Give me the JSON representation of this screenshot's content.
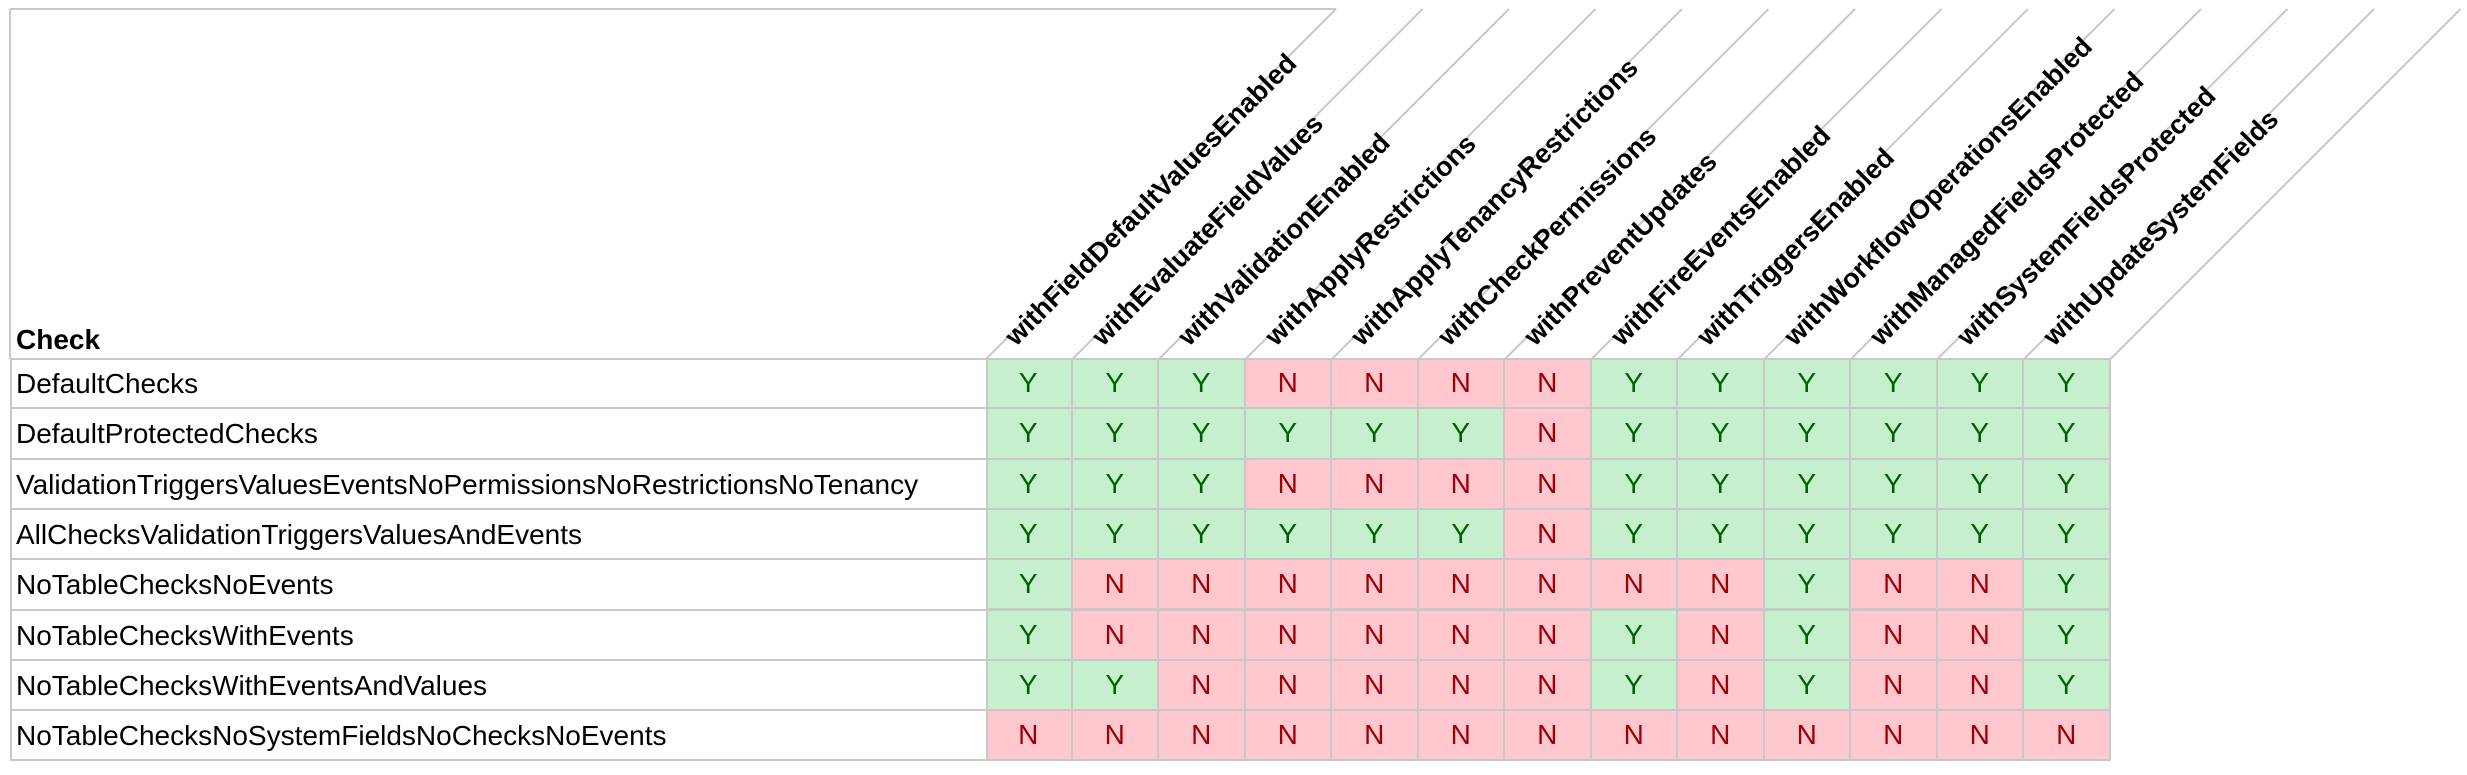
{
  "table": {
    "corner_label": "Check",
    "columns": [
      "withFieldDefaultValuesEnabled",
      "withEvaluateFieldValues",
      "withValidationEnabled",
      "withApplyRestrictions",
      "withApplyTenancyRestrictions",
      "withCheckPermissions",
      "withPreventUpdates",
      "withFireEventsEnabled",
      "withTriggersEnabled",
      "withWorkflowOperationsEnabled",
      "withManagedFieldsProtected",
      "withSystemFieldsProtected",
      "withUpdateSystemFields"
    ],
    "rows": [
      {
        "label": "DefaultChecks",
        "values": [
          "Y",
          "Y",
          "Y",
          "N",
          "N",
          "N",
          "N",
          "Y",
          "Y",
          "Y",
          "Y",
          "Y",
          "Y"
        ]
      },
      {
        "label": "DefaultProtectedChecks",
        "values": [
          "Y",
          "Y",
          "Y",
          "Y",
          "Y",
          "Y",
          "N",
          "Y",
          "Y",
          "Y",
          "Y",
          "Y",
          "Y"
        ]
      },
      {
        "label": "ValidationTriggersValuesEventsNoPermissionsNoRestrictionsNoTenancy",
        "values": [
          "Y",
          "Y",
          "Y",
          "N",
          "N",
          "N",
          "N",
          "Y",
          "Y",
          "Y",
          "Y",
          "Y",
          "Y"
        ]
      },
      {
        "label": "AllChecksValidationTriggersValuesAndEvents",
        "values": [
          "Y",
          "Y",
          "Y",
          "Y",
          "Y",
          "Y",
          "N",
          "Y",
          "Y",
          "Y",
          "Y",
          "Y",
          "Y"
        ]
      },
      {
        "label": "NoTableChecksNoEvents",
        "values": [
          "Y",
          "N",
          "N",
          "N",
          "N",
          "N",
          "N",
          "N",
          "N",
          "Y",
          "N",
          "N",
          "Y"
        ]
      },
      {
        "label": "NoTableChecksWithEvents",
        "values": [
          "Y",
          "N",
          "N",
          "N",
          "N",
          "N",
          "N",
          "Y",
          "N",
          "Y",
          "N",
          "N",
          "Y"
        ]
      },
      {
        "label": "NoTableChecksWithEventsAndValues",
        "values": [
          "Y",
          "Y",
          "N",
          "N",
          "N",
          "N",
          "N",
          "Y",
          "N",
          "Y",
          "N",
          "N",
          "Y"
        ]
      },
      {
        "label": "NoTableChecksNoSystemFieldsNoChecksNoEvents",
        "values": [
          "N",
          "N",
          "N",
          "N",
          "N",
          "N",
          "N",
          "N",
          "N",
          "N",
          "N",
          "N",
          "N"
        ]
      }
    ]
  }
}
